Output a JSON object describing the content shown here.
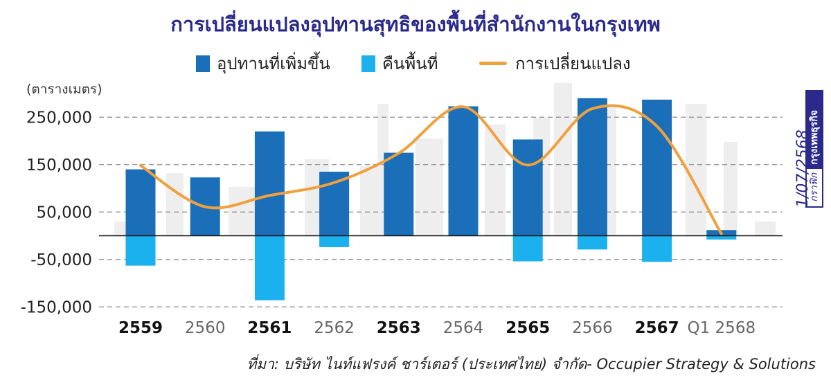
{
  "chart_data": {
    "type": "bar",
    "title": "การเปลี่ยนแปลงอุปทานสุทธิของพื้นที่สำนักงานในกรุงเทพ",
    "ylabel": "(ตารางเมตร)",
    "ylim": [
      -170000,
      300000
    ],
    "yticks": [
      250000,
      150000,
      50000,
      -50000,
      -150000
    ],
    "ytick_labels": [
      "250,000",
      "150,000",
      "50,000",
      "-50,000",
      "-150,000"
    ],
    "categories": [
      "2559",
      "2560",
      "2561",
      "2562",
      "2563",
      "2564",
      "2565",
      "2566",
      "2567",
      "Q1 2568"
    ],
    "series": [
      {
        "name": "อุปทานที่เพิ่มขึ้น",
        "type": "bar",
        "color": "#1a6fb8",
        "values": [
          140000,
          123000,
          220000,
          135000,
          175000,
          273000,
          203000,
          290000,
          287000,
          12000
        ]
      },
      {
        "name": "คืนพื้นที่",
        "type": "bar",
        "color": "#1ab1ee",
        "values": [
          -63000,
          0,
          -136000,
          -24000,
          0,
          0,
          -54000,
          -29000,
          -55000,
          -8000
        ]
      },
      {
        "name": "การเปลี่ยนแปลง",
        "type": "line",
        "color": "#f0a03c",
        "values": [
          148000,
          61000,
          85000,
          112000,
          174000,
          272000,
          149000,
          268000,
          231000,
          4000
        ]
      }
    ],
    "gridlines": "dashed",
    "legend_position": "top-center"
  },
  "side_date": "1/07/2568",
  "side_brand": {
    "prefix": "กราฟิก",
    "name": "กรุงเทพธุรกิจ"
  },
  "source": "ที่มา: บริษัท ไนท์แฟรงค์ ชาร์เตอร์ (ประเทศไทย) จำกัด- Occupier Strategy & Solutions"
}
